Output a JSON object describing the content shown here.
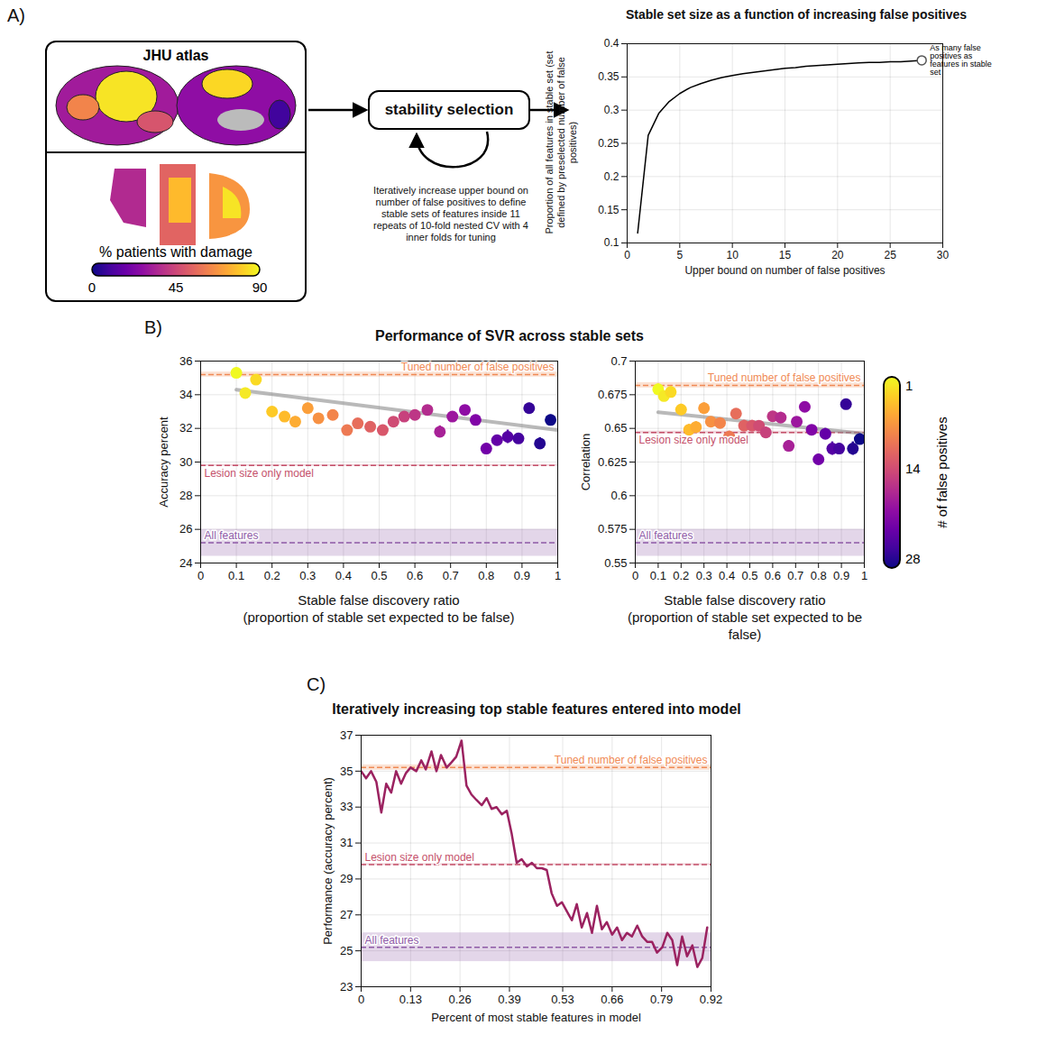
{
  "panel_labels": [
    "A)",
    "B)",
    "C)"
  ],
  "diagram": {
    "atlas_title": "JHU atlas",
    "colorbar_label": "% patients with damage",
    "colorbar_range": [
      0,
      90
    ],
    "colorbar_ticks": [
      0,
      45,
      90
    ],
    "process": "stability selection",
    "process_note": "Iteratively increase upper bound on number of false positives to define stable sets of features inside 11 repeats of 10-fold nested CV with 4 inner folds for tuning"
  },
  "panel_b": {
    "title": "Performance of SVR across stable sets",
    "colorbar": {
      "label": "# of false positives",
      "range": [
        1,
        28
      ],
      "ticks": [
        1,
        14,
        28
      ]
    }
  },
  "chart_data": [
    {
      "type": "line",
      "title": "Stable set size as a function of increasing false positives",
      "xlabel": "Upper bound on number of false positives",
      "ylabel": "Proportion of all features in stable set (set defined by preselected number of false positives)",
      "x": [
        1,
        2,
        3,
        4,
        5,
        6,
        7,
        8,
        9,
        10,
        11,
        12,
        13,
        14,
        15,
        16,
        17,
        18,
        19,
        20,
        21,
        22,
        23,
        24,
        25,
        26,
        27,
        28
      ],
      "values": [
        0.115,
        0.262,
        0.295,
        0.313,
        0.325,
        0.334,
        0.34,
        0.345,
        0.349,
        0.352,
        0.355,
        0.357,
        0.359,
        0.361,
        0.363,
        0.364,
        0.366,
        0.367,
        0.368,
        0.369,
        0.37,
        0.371,
        0.372,
        0.372,
        0.373,
        0.373,
        0.374,
        0.375
      ],
      "color": "#000000",
      "xlim": [
        0,
        30
      ],
      "xticks": [
        0,
        5,
        10,
        15,
        20,
        25,
        30
      ],
      "ylim": [
        0.1,
        0.4
      ],
      "yticks": [
        0.1,
        0.15,
        0.2,
        0.25,
        0.3,
        0.35,
        0.4
      ],
      "grid": true,
      "annotation": {
        "x": 28,
        "y": 0.375,
        "text": "As many false positives as features in stable set"
      }
    },
    {
      "type": "scatter",
      "xlabel": "Stable false discovery ratio\n(proportion of stable set expected to be false)",
      "ylabel": "Accuracy percent",
      "x": [
        0.1,
        0.125,
        0.155,
        0.2,
        0.235,
        0.265,
        0.3,
        0.33,
        0.37,
        0.41,
        0.44,
        0.475,
        0.51,
        0.54,
        0.57,
        0.6,
        0.635,
        0.67,
        0.705,
        0.74,
        0.77,
        0.8,
        0.83,
        0.86,
        0.89,
        0.92,
        0.95,
        0.98
      ],
      "values": [
        35.3,
        34.1,
        34.9,
        33.0,
        32.7,
        32.4,
        33.2,
        32.6,
        32.8,
        31.9,
        32.3,
        32.1,
        31.9,
        32.4,
        32.7,
        32.8,
        33.1,
        31.8,
        32.7,
        33.1,
        32.5,
        30.8,
        31.3,
        31.5,
        31.4,
        33.2,
        31.1,
        32.5
      ],
      "errors": [
        0.3,
        0.3,
        0.25,
        0.25,
        0.3,
        0.3,
        0.3,
        0.25,
        0.2,
        0.25,
        0.25,
        0.25,
        0.3,
        0.25,
        0.25,
        0.3,
        0.25,
        0.35,
        0.3,
        0.25,
        0.2,
        0.3,
        0.3,
        0.4,
        0.3,
        0.3,
        0.35,
        0.3
      ],
      "false_positives": [
        1,
        2,
        3,
        4,
        5,
        6,
        7,
        8,
        9,
        10,
        11,
        12,
        13,
        14,
        15,
        16,
        17,
        18,
        19,
        20,
        21,
        22,
        23,
        24,
        25,
        26,
        27,
        28
      ],
      "trend": {
        "x": [
          0.1,
          1
        ],
        "values": [
          34.3,
          31.9
        ]
      },
      "reference_lines": [
        {
          "name": "Tuned number of false positives",
          "value": 35.2,
          "band": 0.15,
          "color": "#f08a55"
        },
        {
          "name": "Lesion size only model",
          "value": 29.8,
          "band": 0.05,
          "color": "#c4506a"
        },
        {
          "name": "All features",
          "value": 25.2,
          "band": 0.8,
          "color": "#8e5aa6"
        }
      ],
      "xlim": [
        0,
        1
      ],
      "xticks": [
        0,
        0.1,
        0.2,
        0.3,
        0.4,
        0.5,
        0.6,
        0.7,
        0.8,
        0.9,
        1
      ],
      "ylim": [
        24,
        36
      ],
      "yticks": [
        24,
        26,
        28,
        30,
        32,
        34,
        36
      ],
      "grid": true
    },
    {
      "type": "scatter",
      "xlabel": "Stable false discovery ratio\n(proportion of stable set expected to be false)",
      "ylabel": "Correlation",
      "x": [
        0.1,
        0.125,
        0.155,
        0.2,
        0.235,
        0.265,
        0.3,
        0.33,
        0.37,
        0.41,
        0.44,
        0.475,
        0.51,
        0.54,
        0.57,
        0.6,
        0.635,
        0.67,
        0.705,
        0.74,
        0.77,
        0.8,
        0.83,
        0.86,
        0.89,
        0.92,
        0.95,
        0.98
      ],
      "values": [
        0.679,
        0.674,
        0.677,
        0.664,
        0.649,
        0.651,
        0.665,
        0.655,
        0.654,
        0.644,
        0.661,
        0.652,
        0.652,
        0.652,
        0.647,
        0.659,
        0.658,
        0.637,
        0.655,
        0.666,
        0.649,
        0.627,
        0.646,
        0.635,
        0.635,
        0.668,
        0.635,
        0.642
      ],
      "errors": [
        0.004,
        0.004,
        0.004,
        0.004,
        0.004,
        0.004,
        0.004,
        0.003,
        0.003,
        0.004,
        0.003,
        0.004,
        0.004,
        0.003,
        0.004,
        0.003,
        0.004,
        0.004,
        0.003,
        0.003,
        0.003,
        0.004,
        0.004,
        0.005,
        0.004,
        0.003,
        0.005,
        0.004
      ],
      "false_positives": [
        1,
        2,
        3,
        4,
        5,
        6,
        7,
        8,
        9,
        10,
        11,
        12,
        13,
        14,
        15,
        16,
        17,
        18,
        19,
        20,
        21,
        22,
        23,
        24,
        25,
        26,
        27,
        28
      ],
      "trend": {
        "x": [
          0.1,
          1
        ],
        "values": [
          0.662,
          0.646
        ]
      },
      "reference_lines": [
        {
          "name": "Tuned number of false positives",
          "value": 0.682,
          "band": 0.002,
          "color": "#f08a55"
        },
        {
          "name": "Lesion size only model",
          "value": 0.647,
          "band": 0.001,
          "color": "#c4506a"
        },
        {
          "name": "All features",
          "value": 0.565,
          "band": 0.01,
          "color": "#8e5aa6"
        }
      ],
      "xlim": [
        0,
        1
      ],
      "xticks": [
        0,
        0.1,
        0.2,
        0.3,
        0.4,
        0.5,
        0.6,
        0.7,
        0.8,
        0.9,
        1
      ],
      "ylim": [
        0.55,
        0.7
      ],
      "yticks": [
        0.55,
        0.575,
        0.6,
        0.625,
        0.65,
        0.675,
        0.7
      ],
      "grid": true
    },
    {
      "type": "line",
      "title": "Iteratively increasing top stable features entered into model",
      "xlabel": "Percent of most stable features in model",
      "ylabel": "Performance (accuracy percent)",
      "x": [
        0,
        0.013,
        0.026,
        0.04,
        0.053,
        0.066,
        0.079,
        0.092,
        0.105,
        0.118,
        0.13,
        0.145,
        0.158,
        0.17,
        0.185,
        0.198,
        0.21,
        0.225,
        0.238,
        0.25,
        0.264,
        0.277,
        0.29,
        0.303,
        0.317,
        0.33,
        0.343,
        0.356,
        0.37,
        0.383,
        0.396,
        0.409,
        0.422,
        0.436,
        0.449,
        0.462,
        0.475,
        0.488,
        0.501,
        0.515,
        0.528,
        0.541,
        0.554,
        0.567,
        0.58,
        0.594,
        0.607,
        0.62,
        0.633,
        0.646,
        0.66,
        0.673,
        0.686,
        0.699,
        0.712,
        0.726,
        0.739,
        0.752,
        0.765,
        0.778,
        0.792,
        0.805,
        0.818,
        0.831,
        0.844,
        0.857,
        0.871,
        0.884,
        0.897,
        0.91
      ],
      "values": [
        35.0,
        34.6,
        35.0,
        34.4,
        32.7,
        34.3,
        33.8,
        35.0,
        34.3,
        34.9,
        35.2,
        35.0,
        35.6,
        35.1,
        36.1,
        35.0,
        35.9,
        35.2,
        35.5,
        35.8,
        36.7,
        34.2,
        33.7,
        33.4,
        33.1,
        33.5,
        32.9,
        33.0,
        32.6,
        32.8,
        31.5,
        29.9,
        30.1,
        29.7,
        29.9,
        29.6,
        29.6,
        29.5,
        28.2,
        27.5,
        27.7,
        27.2,
        26.7,
        27.6,
        26.3,
        27.1,
        26.0,
        27.5,
        26.2,
        26.6,
        25.9,
        26.3,
        25.6,
        26.0,
        25.8,
        26.4,
        25.8,
        25.5,
        25.5,
        24.9,
        25.2,
        26.0,
        25.6,
        24.2,
        25.8,
        24.7,
        25.3,
        24.1,
        24.6,
        26.3
      ],
      "color": "#9b2260",
      "reference_lines": [
        {
          "name": "Tuned number of false positives",
          "value": 35.2,
          "band": 0.15,
          "color": "#f08a55"
        },
        {
          "name": "Lesion size only model",
          "value": 29.8,
          "band": 0.05,
          "color": "#c4506a"
        },
        {
          "name": "All features",
          "value": 25.2,
          "band": 0.8,
          "color": "#8e5aa6"
        }
      ],
      "xlim": [
        0,
        0.92
      ],
      "xticks": [
        0,
        0.13,
        0.26,
        0.39,
        0.53,
        0.66,
        0.79,
        0.92
      ],
      "ylim": [
        23,
        37
      ],
      "yticks": [
        23,
        25,
        27,
        29,
        31,
        33,
        35,
        37
      ],
      "grid": true
    }
  ]
}
